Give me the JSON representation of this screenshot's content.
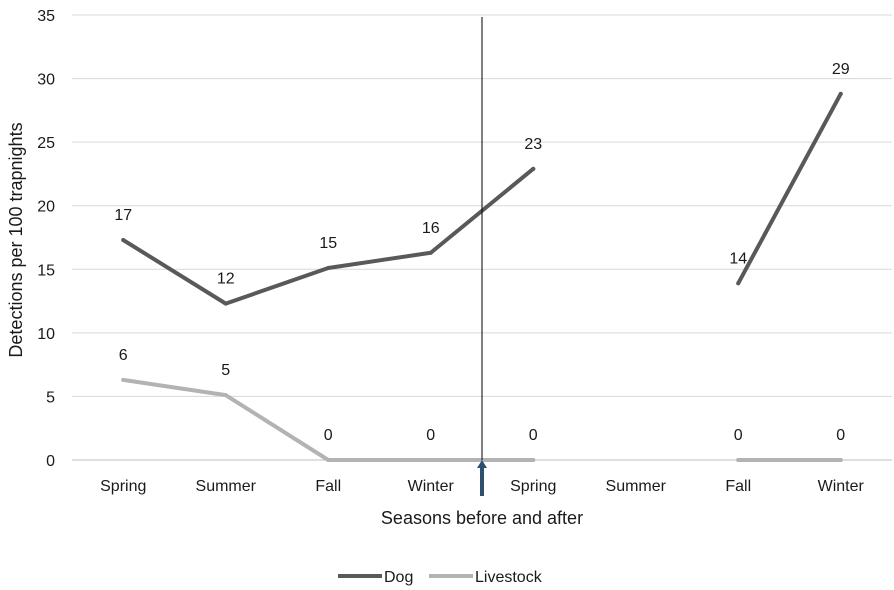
{
  "chart_data": {
    "type": "line",
    "title": "",
    "xlabel": "Seasons before and after",
    "ylabel": "Detections per 100 trapnights",
    "ylim": [
      0,
      35
    ],
    "yticks": [
      0,
      5,
      10,
      15,
      20,
      25,
      30,
      35
    ],
    "grid": true,
    "legend_position": "bottom",
    "categories": [
      "Spring",
      "Summer",
      "Fall",
      "Winter",
      "Spring",
      "Summer",
      "Fall",
      "Winter"
    ],
    "series": [
      {
        "name": "Dog",
        "color": "#595959",
        "values": [
          17.3,
          12.3,
          15.1,
          16.3,
          22.9,
          null,
          13.9,
          28.8
        ],
        "labels": [
          "17",
          "12",
          "15",
          "16",
          "23",
          "",
          "14",
          "29"
        ]
      },
      {
        "name": "Livestock",
        "color": "#b3b3b3",
        "values": [
          6.3,
          5.1,
          0,
          0,
          0,
          null,
          0,
          0
        ],
        "labels": [
          "6",
          "5",
          "0",
          "0",
          "0",
          "",
          "0",
          "0"
        ]
      }
    ],
    "annotations": {
      "divider_after_category_index": 3,
      "divider_color": "#000000",
      "arrow_color": "#2f4f6f"
    }
  }
}
